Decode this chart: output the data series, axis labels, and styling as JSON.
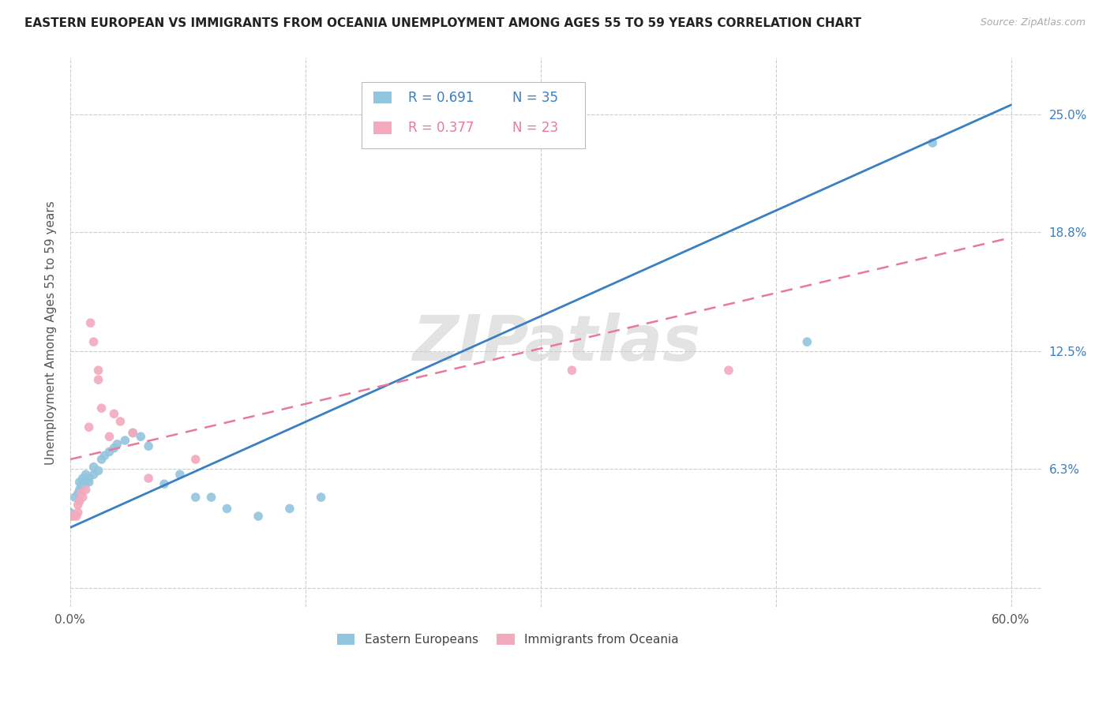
{
  "title": "EASTERN EUROPEAN VS IMMIGRANTS FROM OCEANIA UNEMPLOYMENT AMONG AGES 55 TO 59 YEARS CORRELATION CHART",
  "source": "Source: ZipAtlas.com",
  "ylabel": "Unemployment Among Ages 55 to 59 years",
  "watermark": "ZIPatlas",
  "blue_R": 0.691,
  "blue_N": 35,
  "pink_R": 0.377,
  "pink_N": 23,
  "blue_color": "#92c5de",
  "pink_color": "#f4a9be",
  "blue_line_color": "#3a7fc1",
  "pink_line_color": "#e8799a",
  "xlim": [
    0.0,
    0.62
  ],
  "ylim": [
    -0.01,
    0.28
  ],
  "ytick_vals": [
    0.0,
    0.063,
    0.125,
    0.188,
    0.25
  ],
  "ytick_labels": [
    "",
    "6.3%",
    "12.5%",
    "18.8%",
    "25.0%"
  ],
  "xtick_vals": [
    0.0,
    0.15,
    0.3,
    0.45,
    0.6
  ],
  "xtick_labels": [
    "0.0%",
    "",
    "",
    "",
    "60.0%"
  ],
  "blue_scatter": [
    [
      0.0,
      0.04
    ],
    [
      0.0,
      0.038
    ],
    [
      0.003,
      0.048
    ],
    [
      0.005,
      0.05
    ],
    [
      0.006,
      0.052
    ],
    [
      0.006,
      0.056
    ],
    [
      0.007,
      0.054
    ],
    [
      0.008,
      0.054
    ],
    [
      0.008,
      0.058
    ],
    [
      0.01,
      0.056
    ],
    [
      0.01,
      0.06
    ],
    [
      0.012,
      0.056
    ],
    [
      0.012,
      0.058
    ],
    [
      0.015,
      0.06
    ],
    [
      0.015,
      0.064
    ],
    [
      0.018,
      0.062
    ],
    [
      0.02,
      0.068
    ],
    [
      0.022,
      0.07
    ],
    [
      0.025,
      0.072
    ],
    [
      0.028,
      0.074
    ],
    [
      0.03,
      0.076
    ],
    [
      0.035,
      0.078
    ],
    [
      0.04,
      0.082
    ],
    [
      0.045,
      0.08
    ],
    [
      0.05,
      0.075
    ],
    [
      0.06,
      0.055
    ],
    [
      0.07,
      0.06
    ],
    [
      0.08,
      0.048
    ],
    [
      0.09,
      0.048
    ],
    [
      0.1,
      0.042
    ],
    [
      0.12,
      0.038
    ],
    [
      0.14,
      0.042
    ],
    [
      0.16,
      0.048
    ],
    [
      0.47,
      0.13
    ],
    [
      0.55,
      0.235
    ]
  ],
  "pink_scatter": [
    [
      0.0,
      0.038
    ],
    [
      0.002,
      0.038
    ],
    [
      0.004,
      0.038
    ],
    [
      0.005,
      0.04
    ],
    [
      0.005,
      0.044
    ],
    [
      0.006,
      0.046
    ],
    [
      0.007,
      0.05
    ],
    [
      0.008,
      0.048
    ],
    [
      0.01,
      0.052
    ],
    [
      0.012,
      0.085
    ],
    [
      0.013,
      0.14
    ],
    [
      0.015,
      0.13
    ],
    [
      0.018,
      0.11
    ],
    [
      0.018,
      0.115
    ],
    [
      0.02,
      0.095
    ],
    [
      0.025,
      0.08
    ],
    [
      0.028,
      0.092
    ],
    [
      0.032,
      0.088
    ],
    [
      0.04,
      0.082
    ],
    [
      0.05,
      0.058
    ],
    [
      0.08,
      0.068
    ],
    [
      0.32,
      0.115
    ],
    [
      0.42,
      0.115
    ]
  ],
  "blue_line_x": [
    0.0,
    0.6
  ],
  "blue_line_y": [
    0.032,
    0.255
  ],
  "pink_line_x": [
    0.0,
    0.6
  ],
  "pink_line_y": [
    0.068,
    0.185
  ],
  "background_color": "#ffffff",
  "grid_color": "#cccccc",
  "legend_east_label": "Eastern Europeans",
  "legend_ocean_label": "Immigrants from Oceania"
}
